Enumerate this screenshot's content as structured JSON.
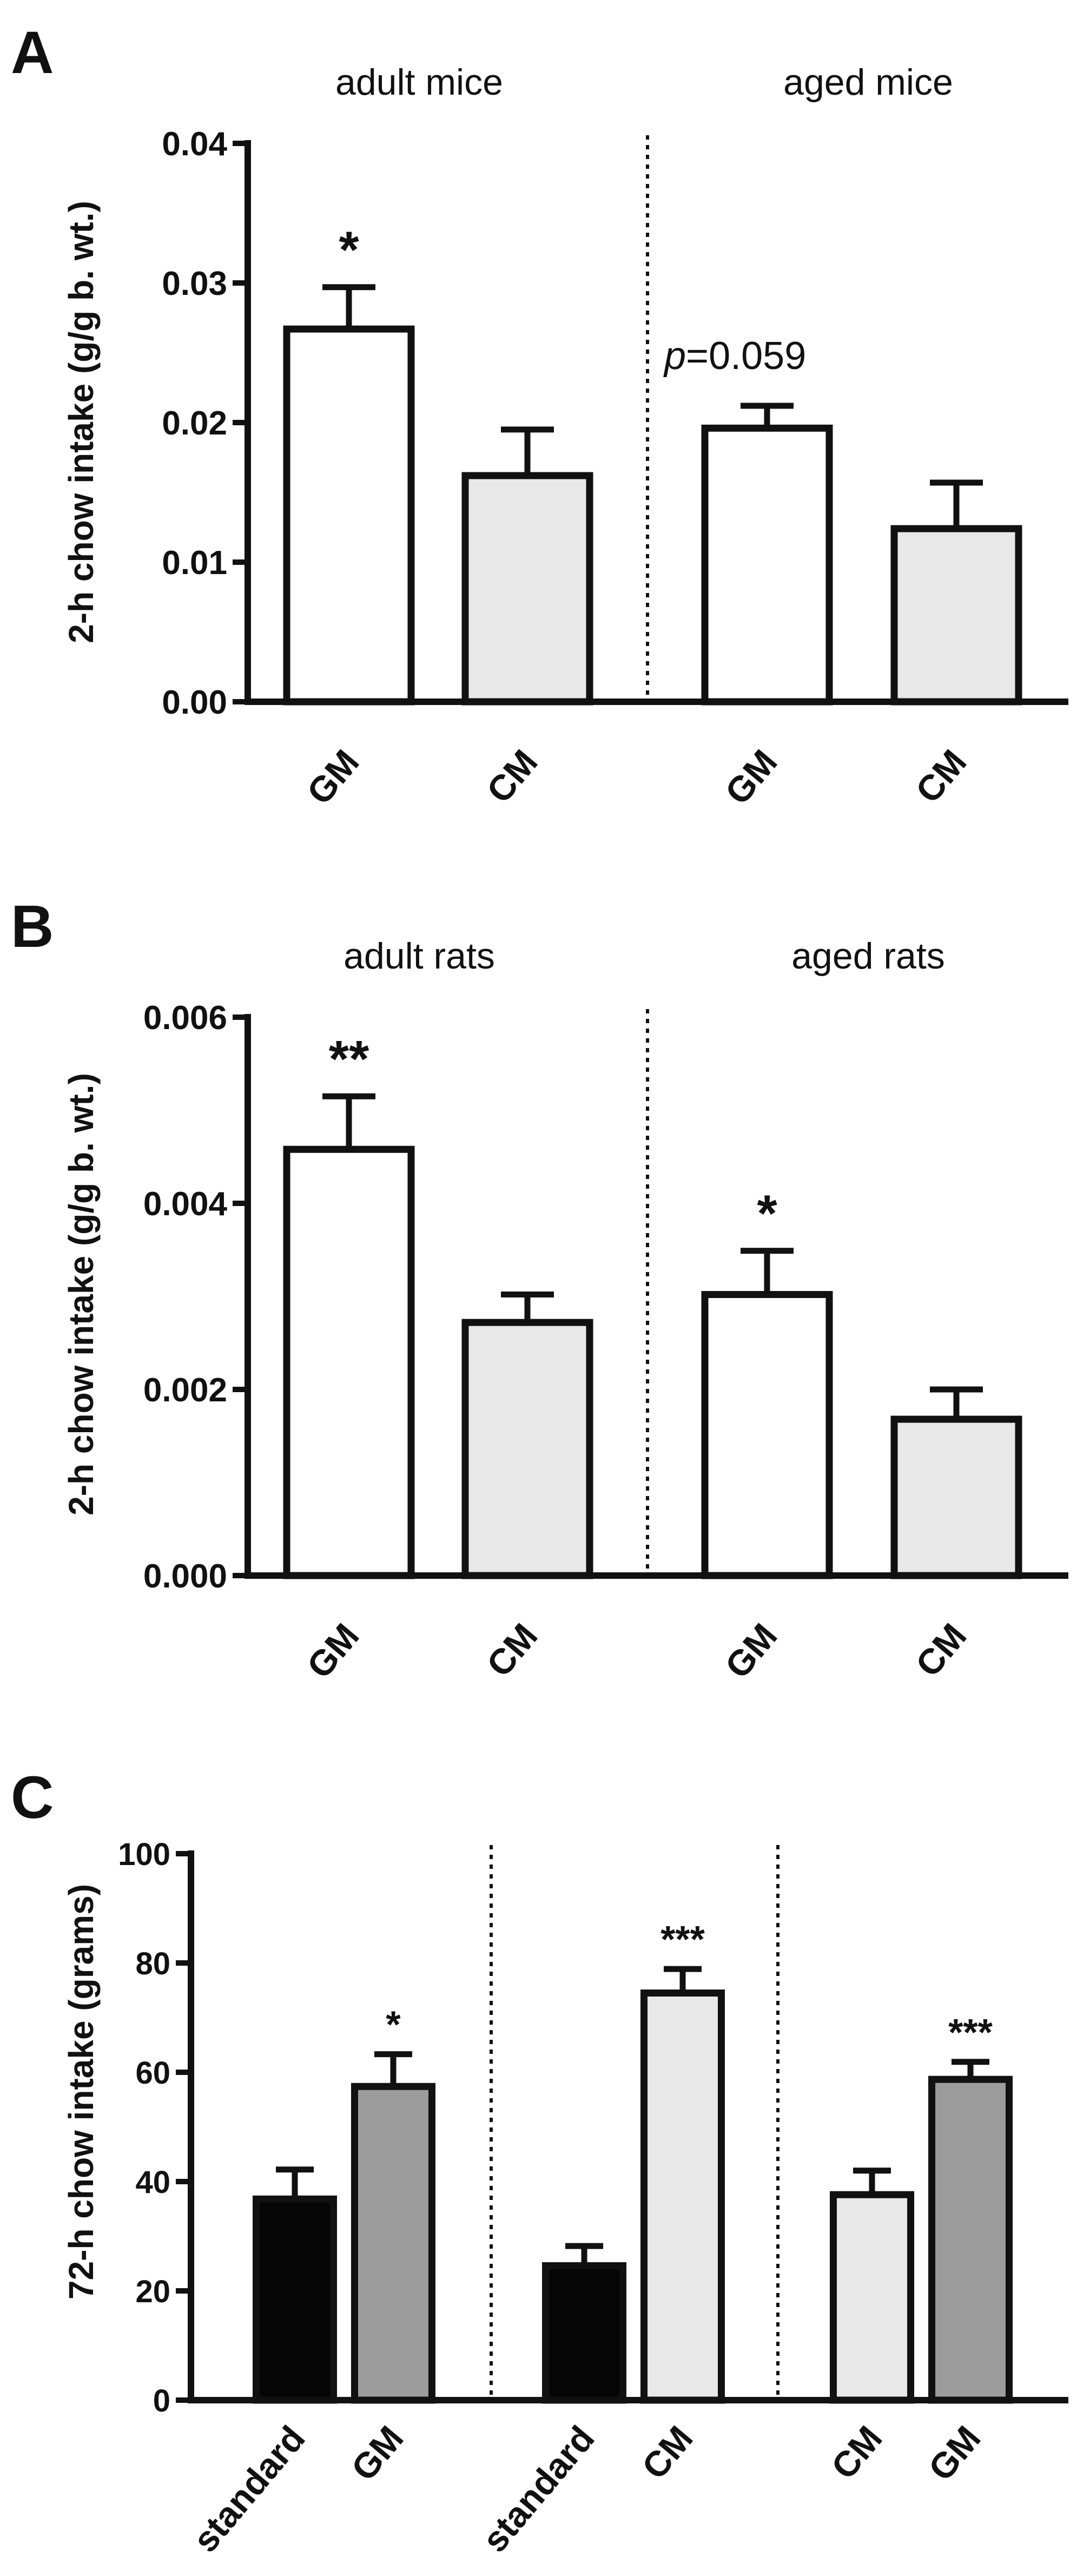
{
  "colors": {
    "white": "#ffffff",
    "light_gray": "#e8e8e8",
    "dark_gray": "#9c9c9c",
    "black": "#050505"
  },
  "chart_data": [
    {
      "panel": "A",
      "type": "bar",
      "ylabel": "2-h chow intake (g/g b. wt.)",
      "ylim": [
        0,
        0.04
      ],
      "yticks": [
        "0.00",
        "0.01",
        "0.02",
        "0.03",
        "0.04"
      ],
      "groups": [
        "adult mice",
        "aged mice"
      ],
      "bars": [
        {
          "category": "GM",
          "value": 0.0267,
          "error": 0.003,
          "fill": "white",
          "sig": "*"
        },
        {
          "category": "CM",
          "value": 0.0162,
          "error": 0.0033,
          "fill": "light_gray",
          "sig": ""
        },
        {
          "category": "GM",
          "value": 0.0196,
          "error": 0.0016,
          "fill": "white",
          "sig": ""
        },
        {
          "category": "CM",
          "value": 0.0124,
          "error": 0.0033,
          "fill": "light_gray",
          "sig": ""
        }
      ],
      "annotation": {
        "prefix": "p",
        "text": "=0.059"
      }
    },
    {
      "panel": "B",
      "type": "bar",
      "ylabel": "2-h chow intake (g/g b. wt.)",
      "ylim": [
        0,
        0.006
      ],
      "yticks": [
        "0.000",
        "0.002",
        "0.004",
        "0.006"
      ],
      "groups": [
        "adult rats",
        "aged rats"
      ],
      "bars": [
        {
          "category": "GM",
          "value": 0.00458,
          "error": 0.00057,
          "fill": "white",
          "sig": "**"
        },
        {
          "category": "CM",
          "value": 0.00272,
          "error": 0.0003,
          "fill": "light_gray",
          "sig": ""
        },
        {
          "category": "GM",
          "value": 0.00302,
          "error": 0.00047,
          "fill": "white",
          "sig": "*"
        },
        {
          "category": "CM",
          "value": 0.00168,
          "error": 0.00032,
          "fill": "light_gray",
          "sig": ""
        }
      ]
    },
    {
      "panel": "C",
      "type": "bar",
      "ylabel": "72-h chow intake (grams)",
      "ylim": [
        0,
        100
      ],
      "yticks": [
        "0",
        "20",
        "40",
        "60",
        "80",
        "100"
      ],
      "bars": [
        {
          "category": "standard",
          "value": 36.8,
          "error": 5.4,
          "fill": "black",
          "sig": ""
        },
        {
          "category": "GM",
          "value": 57.4,
          "error": 5.9,
          "fill": "dark_gray",
          "sig": "*"
        },
        {
          "category": "standard",
          "value": 24.6,
          "error": 3.6,
          "fill": "black",
          "sig": ""
        },
        {
          "category": "CM",
          "value": 74.5,
          "error": 4.4,
          "fill": "light_gray",
          "sig": "***"
        },
        {
          "category": "CM",
          "value": 37.6,
          "error": 4.4,
          "fill": "light_gray",
          "sig": ""
        },
        {
          "category": "GM",
          "value": 58.7,
          "error": 3.2,
          "fill": "dark_gray",
          "sig": "***"
        }
      ]
    }
  ]
}
